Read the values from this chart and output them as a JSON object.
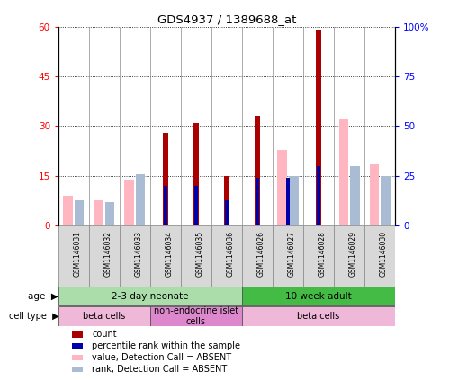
{
  "title": "GDS4937 / 1389688_at",
  "samples": [
    "GSM1146031",
    "GSM1146032",
    "GSM1146033",
    "GSM1146034",
    "GSM1146035",
    "GSM1146036",
    "GSM1146026",
    "GSM1146027",
    "GSM1146028",
    "GSM1146029",
    "GSM1146030"
  ],
  "count": [
    0,
    0,
    0,
    28,
    31,
    15,
    33,
    0,
    59,
    0,
    0
  ],
  "percentile_rank": [
    0,
    0,
    0,
    20,
    20,
    13,
    24,
    24,
    30,
    0,
    0
  ],
  "value_absent": [
    15,
    13,
    23,
    0,
    0,
    0,
    0,
    38,
    0,
    54,
    31
  ],
  "rank_absent": [
    13,
    12,
    26,
    0,
    0,
    0,
    0,
    25,
    0,
    30,
    25
  ],
  "ylim_left": [
    0,
    60
  ],
  "ylim_right": [
    0,
    100
  ],
  "yticks_left": [
    0,
    15,
    30,
    45,
    60
  ],
  "yticks_right": [
    0,
    25,
    50,
    75,
    100
  ],
  "ytick_labels_left": [
    "0",
    "15",
    "30",
    "45",
    "60"
  ],
  "ytick_labels_right": [
    "0",
    "25",
    "50",
    "75",
    "100%"
  ],
  "age_groups": [
    {
      "label": "2-3 day neonate",
      "start": 0,
      "end": 6,
      "color": "#aaddaa"
    },
    {
      "label": "10 week adult",
      "start": 6,
      "end": 11,
      "color": "#44bb44"
    }
  ],
  "cell_type_groups": [
    {
      "label": "beta cells",
      "start": 0,
      "end": 3,
      "color": "#f0b8d8"
    },
    {
      "label": "non-endocrine islet\ncells",
      "start": 3,
      "end": 6,
      "color": "#dd88cc"
    },
    {
      "label": "beta cells",
      "start": 6,
      "end": 11,
      "color": "#f0b8d8"
    }
  ],
  "color_count": "#AA0000",
  "color_rank": "#0000AA",
  "color_value_absent": "#FFB6C1",
  "color_rank_absent": "#AABBD4",
  "legend_items": [
    {
      "label": "count",
      "color": "#AA0000"
    },
    {
      "label": "percentile rank within the sample",
      "color": "#0000AA"
    },
    {
      "label": "value, Detection Call = ABSENT",
      "color": "#FFB6C1"
    },
    {
      "label": "rank, Detection Call = ABSENT",
      "color": "#AABBD4"
    }
  ]
}
